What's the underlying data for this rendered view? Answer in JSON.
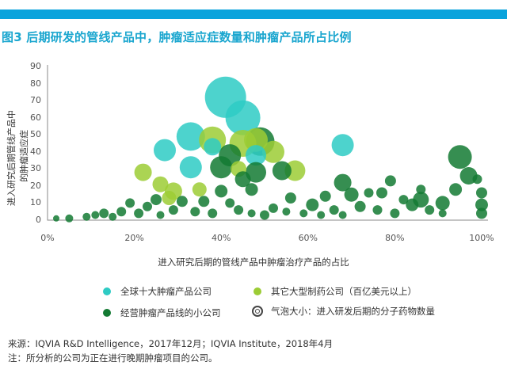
{
  "header": {
    "title": "图3 后期研发的管线产品中，肿瘤适应症数量和肿瘤产品所占比例",
    "bar_color": "#0aa3dc",
    "title_color": "#1aa6cf"
  },
  "legend": {
    "items": [
      {
        "label": "全球十大肿瘤产品公司",
        "color": "#2ecbc4"
      },
      {
        "label": "其它大型制药公司（百亿美元以上）",
        "color": "#9ccc35"
      },
      {
        "label": "经营肿瘤产品线的小公司",
        "color": "#137a33"
      },
      {
        "label": "气泡大小：进入研发后期的分子药物数量",
        "icon": "concentric-circle-icon"
      }
    ]
  },
  "footer": {
    "source": "来源：IQVIA R&D Intelligence，2017年12月；IQVIA Institute，2018年4月",
    "note": "注：所分析的公司为正在进行晚期肿瘤项目的公司。"
  },
  "chart_data": {
    "type": "scatter",
    "subtype": "bubble",
    "title": "图3 后期研发的管线产品中，肿瘤适应症数量和肿瘤产品所占比例",
    "xlabel": "进入研究后期的管线产品中肿瘤治疗产品的占比",
    "ylabel_lines": [
      "进入研究后期管线产品中",
      "的肿瘤适应症"
    ],
    "xlim": [
      0,
      100
    ],
    "ylim": [
      0,
      90
    ],
    "x_ticks": [
      "0%",
      "20%",
      "40%",
      "60%",
      "80%",
      "100%"
    ],
    "y_ticks": [
      "0",
      "10",
      "20",
      "30",
      "40",
      "50",
      "60",
      "70",
      "80",
      "90"
    ],
    "grid": false,
    "legend_position": "bottom",
    "size_meaning": "气泡大小：进入研发后期的分子药物数量",
    "series": [
      {
        "name": "全球十大肿瘤产品公司",
        "color": "#2ecbc4",
        "points": [
          {
            "x": 41,
            "y": 72,
            "r": 26
          },
          {
            "x": 45,
            "y": 60,
            "r": 22
          },
          {
            "x": 33,
            "y": 49,
            "r": 18
          },
          {
            "x": 27,
            "y": 41,
            "r": 14
          },
          {
            "x": 33,
            "y": 31,
            "r": 14
          },
          {
            "x": 38,
            "y": 43,
            "r": 11
          },
          {
            "x": 48,
            "y": 38,
            "r": 13
          },
          {
            "x": 68,
            "y": 44,
            "r": 14
          }
        ]
      },
      {
        "name": "其它大型制药公司（百亿美元以上）",
        "color": "#9ccc35",
        "points": [
          {
            "x": 38,
            "y": 47,
            "r": 17
          },
          {
            "x": 45,
            "y": 45,
            "r": 17
          },
          {
            "x": 48,
            "y": 47,
            "r": 15
          },
          {
            "x": 52,
            "y": 40,
            "r": 14
          },
          {
            "x": 57,
            "y": 29,
            "r": 13
          },
          {
            "x": 22,
            "y": 28,
            "r": 11
          },
          {
            "x": 26,
            "y": 21,
            "r": 10
          },
          {
            "x": 29,
            "y": 17,
            "r": 11
          },
          {
            "x": 35,
            "y": 18,
            "r": 9
          },
          {
            "x": 44,
            "y": 30,
            "r": 10
          },
          {
            "x": 28,
            "y": 13,
            "r": 9
          }
        ]
      },
      {
        "name": "经营肿瘤产品线的小公司",
        "color": "#137a33",
        "points": [
          {
            "x": 49,
            "y": 46,
            "r": 18
          },
          {
            "x": 42,
            "y": 38,
            "r": 14
          },
          {
            "x": 40,
            "y": 31,
            "r": 14
          },
          {
            "x": 48,
            "y": 28,
            "r": 13
          },
          {
            "x": 54,
            "y": 29,
            "r": 12
          },
          {
            "x": 45,
            "y": 24,
            "r": 10
          },
          {
            "x": 95,
            "y": 37,
            "r": 15
          },
          {
            "x": 97,
            "y": 26,
            "r": 11
          },
          {
            "x": 68,
            "y": 22,
            "r": 11
          },
          {
            "x": 70,
            "y": 15,
            "r": 9
          },
          {
            "x": 79,
            "y": 23,
            "r": 7
          },
          {
            "x": 77,
            "y": 16,
            "r": 7
          },
          {
            "x": 86,
            "y": 12,
            "r": 10
          },
          {
            "x": 84,
            "y": 9,
            "r": 8
          },
          {
            "x": 94,
            "y": 18,
            "r": 8
          },
          {
            "x": 91,
            "y": 10,
            "r": 9
          },
          {
            "x": 99,
            "y": 24,
            "r": 6
          },
          {
            "x": 100,
            "y": 16,
            "r": 7
          },
          {
            "x": 100,
            "y": 9,
            "r": 8
          },
          {
            "x": 100,
            "y": 4,
            "r": 7
          },
          {
            "x": 40,
            "y": 17,
            "r": 8
          },
          {
            "x": 36,
            "y": 11,
            "r": 7
          },
          {
            "x": 47,
            "y": 18,
            "r": 8
          },
          {
            "x": 56,
            "y": 13,
            "r": 7
          },
          {
            "x": 61,
            "y": 9,
            "r": 8
          },
          {
            "x": 64,
            "y": 14,
            "r": 7
          },
          {
            "x": 72,
            "y": 8,
            "r": 7
          },
          {
            "x": 74,
            "y": 16,
            "r": 6
          },
          {
            "x": 80,
            "y": 4,
            "r": 6
          },
          {
            "x": 82,
            "y": 12,
            "r": 6
          },
          {
            "x": 88,
            "y": 6,
            "r": 6
          },
          {
            "x": 66,
            "y": 6,
            "r": 6
          },
          {
            "x": 59,
            "y": 4,
            "r": 5
          },
          {
            "x": 52,
            "y": 7,
            "r": 6
          },
          {
            "x": 50,
            "y": 3,
            "r": 6
          },
          {
            "x": 44,
            "y": 6,
            "r": 6
          },
          {
            "x": 42,
            "y": 10,
            "r": 6
          },
          {
            "x": 38,
            "y": 4,
            "r": 6
          },
          {
            "x": 34,
            "y": 5,
            "r": 6
          },
          {
            "x": 31,
            "y": 11,
            "r": 7
          },
          {
            "x": 29,
            "y": 6,
            "r": 6
          },
          {
            "x": 26,
            "y": 3,
            "r": 5
          },
          {
            "x": 23,
            "y": 8,
            "r": 6
          },
          {
            "x": 21,
            "y": 4,
            "r": 6
          },
          {
            "x": 19,
            "y": 10,
            "r": 6
          },
          {
            "x": 17,
            "y": 5,
            "r": 6
          },
          {
            "x": 15,
            "y": 2,
            "r": 5
          },
          {
            "x": 13,
            "y": 4,
            "r": 6
          },
          {
            "x": 11,
            "y": 3,
            "r": 5
          },
          {
            "x": 9,
            "y": 2,
            "r": 5
          },
          {
            "x": 5,
            "y": 1,
            "r": 5
          },
          {
            "x": 2,
            "y": 1,
            "r": 4
          },
          {
            "x": 25,
            "y": 12,
            "r": 7
          },
          {
            "x": 63,
            "y": 3,
            "r": 5
          },
          {
            "x": 55,
            "y": 5,
            "r": 5
          },
          {
            "x": 47,
            "y": 4,
            "r": 5
          },
          {
            "x": 76,
            "y": 6,
            "r": 6
          },
          {
            "x": 86,
            "y": 18,
            "r": 6
          },
          {
            "x": 91,
            "y": 4,
            "r": 5
          },
          {
            "x": 68,
            "y": 3,
            "r": 5
          }
        ]
      }
    ]
  }
}
